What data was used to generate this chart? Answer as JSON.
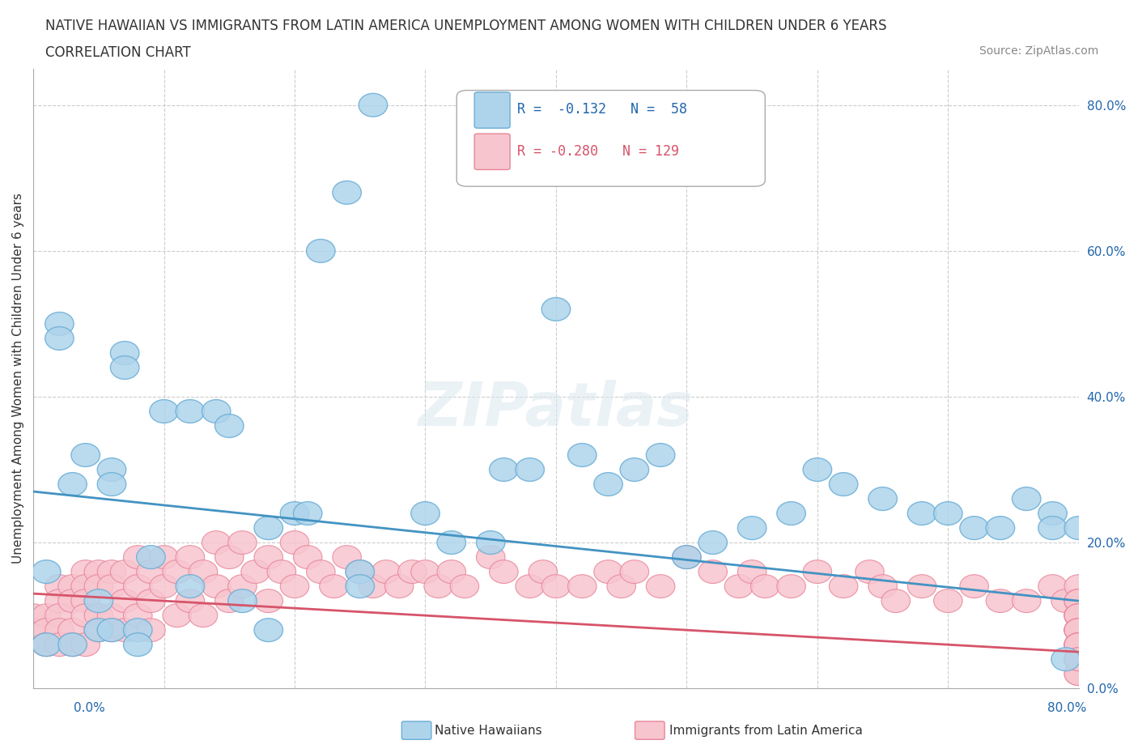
{
  "title_line1": "NATIVE HAWAIIAN VS IMMIGRANTS FROM LATIN AMERICA UNEMPLOYMENT AMONG WOMEN WITH CHILDREN UNDER 6 YEARS",
  "title_line2": "CORRELATION CHART",
  "source": "Source: ZipAtlas.com",
  "ylabel": "Unemployment Among Women with Children Under 6 years",
  "xmin": 0.0,
  "xmax": 0.8,
  "ymin": 0.0,
  "ymax": 0.85,
  "ytick_values": [
    0.0,
    0.2,
    0.4,
    0.6,
    0.8
  ],
  "color_blue_face": "#aed4eb",
  "color_blue_edge": "#6aaed6",
  "color_blue_line": "#4393c3",
  "color_blue_text": "#2166ac",
  "color_pink_face": "#f7c5ce",
  "color_pink_edge": "#e8849a",
  "color_pink_line": "#d6546a",
  "color_pink_text": "#d6546a",
  "watermark": "ZIPatlas",
  "nh_x": [
    0.01,
    0.02,
    0.02,
    0.03,
    0.04,
    0.05,
    0.05,
    0.06,
    0.06,
    0.06,
    0.07,
    0.07,
    0.08,
    0.08,
    0.09,
    0.1,
    0.12,
    0.12,
    0.14,
    0.15,
    0.16,
    0.18,
    0.18,
    0.2,
    0.21,
    0.22,
    0.24,
    0.25,
    0.25,
    0.26,
    0.3,
    0.32,
    0.35,
    0.36,
    0.38,
    0.4,
    0.42,
    0.44,
    0.46,
    0.48,
    0.5,
    0.52,
    0.55,
    0.58,
    0.6,
    0.62,
    0.65,
    0.68,
    0.7,
    0.72,
    0.74,
    0.76,
    0.78,
    0.78,
    0.79,
    0.8,
    0.01,
    0.03
  ],
  "nh_y": [
    0.16,
    0.5,
    0.48,
    0.28,
    0.32,
    0.12,
    0.08,
    0.3,
    0.28,
    0.08,
    0.46,
    0.44,
    0.08,
    0.06,
    0.18,
    0.38,
    0.38,
    0.14,
    0.38,
    0.36,
    0.12,
    0.22,
    0.08,
    0.24,
    0.24,
    0.6,
    0.68,
    0.16,
    0.14,
    0.8,
    0.24,
    0.2,
    0.2,
    0.3,
    0.3,
    0.52,
    0.32,
    0.28,
    0.3,
    0.32,
    0.18,
    0.2,
    0.22,
    0.24,
    0.3,
    0.28,
    0.26,
    0.24,
    0.24,
    0.22,
    0.22,
    0.26,
    0.24,
    0.22,
    0.04,
    0.22,
    0.06,
    0.06
  ],
  "la_x": [
    0.0,
    0.0,
    0.01,
    0.01,
    0.01,
    0.01,
    0.02,
    0.02,
    0.02,
    0.02,
    0.02,
    0.03,
    0.03,
    0.03,
    0.03,
    0.04,
    0.04,
    0.04,
    0.04,
    0.04,
    0.05,
    0.05,
    0.05,
    0.05,
    0.06,
    0.06,
    0.06,
    0.06,
    0.07,
    0.07,
    0.07,
    0.08,
    0.08,
    0.08,
    0.09,
    0.09,
    0.09,
    0.1,
    0.1,
    0.11,
    0.11,
    0.12,
    0.12,
    0.13,
    0.13,
    0.14,
    0.14,
    0.15,
    0.15,
    0.16,
    0.16,
    0.17,
    0.18,
    0.18,
    0.19,
    0.2,
    0.2,
    0.21,
    0.22,
    0.23,
    0.24,
    0.25,
    0.26,
    0.27,
    0.28,
    0.29,
    0.3,
    0.31,
    0.32,
    0.33,
    0.35,
    0.36,
    0.38,
    0.39,
    0.4,
    0.42,
    0.44,
    0.45,
    0.46,
    0.48,
    0.5,
    0.52,
    0.54,
    0.55,
    0.56,
    0.58,
    0.6,
    0.62,
    0.64,
    0.65,
    0.66,
    0.68,
    0.7,
    0.72,
    0.74,
    0.76,
    0.78,
    0.79,
    0.8,
    0.8,
    0.8,
    0.8,
    0.8,
    0.8,
    0.8,
    0.8,
    0.8,
    0.8,
    0.8,
    0.8,
    0.8,
    0.8,
    0.8,
    0.8,
    0.8,
    0.8,
    0.8,
    0.8,
    0.8,
    0.8,
    0.8,
    0.8,
    0.8,
    0.8,
    0.8,
    0.8,
    0.8,
    0.8,
    0.8
  ],
  "la_y": [
    0.1,
    0.08,
    0.1,
    0.08,
    0.06,
    0.06,
    0.14,
    0.12,
    0.1,
    0.08,
    0.06,
    0.14,
    0.12,
    0.08,
    0.06,
    0.16,
    0.14,
    0.12,
    0.1,
    0.06,
    0.16,
    0.14,
    0.1,
    0.08,
    0.16,
    0.14,
    0.1,
    0.08,
    0.16,
    0.12,
    0.08,
    0.18,
    0.14,
    0.1,
    0.16,
    0.12,
    0.08,
    0.18,
    0.14,
    0.16,
    0.1,
    0.18,
    0.12,
    0.16,
    0.1,
    0.2,
    0.14,
    0.18,
    0.12,
    0.2,
    0.14,
    0.16,
    0.18,
    0.12,
    0.16,
    0.2,
    0.14,
    0.18,
    0.16,
    0.14,
    0.18,
    0.16,
    0.14,
    0.16,
    0.14,
    0.16,
    0.16,
    0.14,
    0.16,
    0.14,
    0.18,
    0.16,
    0.14,
    0.16,
    0.14,
    0.14,
    0.16,
    0.14,
    0.16,
    0.14,
    0.18,
    0.16,
    0.14,
    0.16,
    0.14,
    0.14,
    0.16,
    0.14,
    0.16,
    0.14,
    0.12,
    0.14,
    0.12,
    0.14,
    0.12,
    0.12,
    0.14,
    0.12,
    0.14,
    0.12,
    0.1,
    0.12,
    0.1,
    0.08,
    0.12,
    0.1,
    0.08,
    0.1,
    0.08,
    0.06,
    0.1,
    0.08,
    0.06,
    0.08,
    0.06,
    0.04,
    0.08,
    0.06,
    0.04,
    0.06,
    0.04,
    0.06,
    0.04,
    0.04,
    0.02,
    0.06,
    0.04,
    0.02,
    0.04
  ],
  "blue_line_y0": 0.27,
  "blue_line_y1": 0.12,
  "pink_line_y0": 0.13,
  "pink_line_y1": 0.05
}
